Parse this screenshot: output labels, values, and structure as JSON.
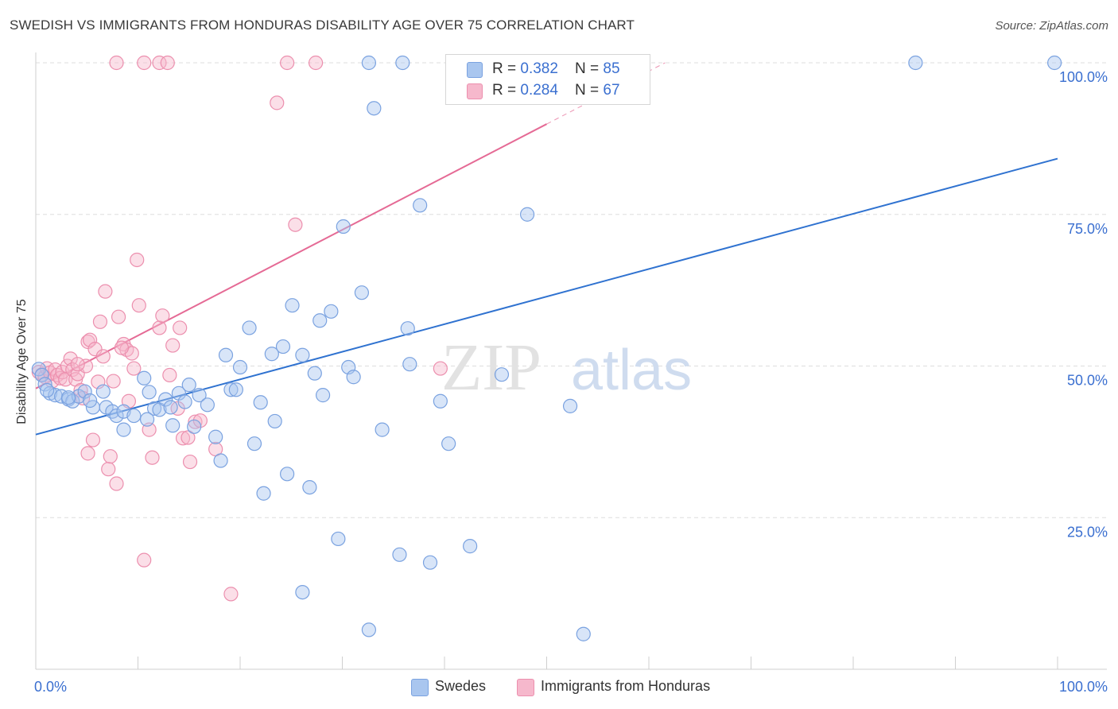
{
  "title": "SWEDISH VS IMMIGRANTS FROM HONDURAS DISABILITY AGE OVER 75 CORRELATION CHART",
  "source": "Source: ZipAtlas.com",
  "watermark": {
    "zip": "ZIP",
    "atlas": "atlas"
  },
  "colors": {
    "blue_fill": "#a9c6ef",
    "blue_stroke": "#7aa2e0",
    "blue_line": "#2f72d0",
    "pink_fill": "#f6b8cc",
    "pink_stroke": "#ec8fae",
    "pink_line": "#e56a95",
    "tick_label": "#3a6fd0",
    "grid": "#dedede"
  },
  "legend": {
    "rows": [
      {
        "r_label": "R = ",
        "r_value": "0.382",
        "n_label": "N = ",
        "n_value": "85"
      },
      {
        "r_label": "R = ",
        "r_value": "0.284",
        "n_label": "N = ",
        "n_value": "67"
      }
    ]
  },
  "bottom_legend": [
    "Swedes",
    "Immigrants from Honduras"
  ],
  "chart_data": {
    "type": "scatter",
    "title": "SWEDISH VS IMMIGRANTS FROM HONDURAS DISABILITY AGE OVER 75 CORRELATION CHART",
    "xlabel": "",
    "ylabel": "Disability Age Over 75",
    "xlim": [
      0,
      100
    ],
    "ylim": [
      0,
      100
    ],
    "x_tick_labels": [
      "0.0%",
      "100.0%"
    ],
    "y_tick_labels": [
      "25.0%",
      "50.0%",
      "75.0%",
      "100.0%"
    ],
    "y_ticks": [
      25,
      50,
      75,
      100
    ],
    "grid": true,
    "legend_position": "top-center",
    "series": [
      {
        "name": "Swedes",
        "r": 0.382,
        "n": 85,
        "trend": {
          "x": [
            0,
            100
          ],
          "y": [
            38.7,
            84.2
          ],
          "dashed_from": null
        },
        "points": [
          [
            0.3,
            49.5
          ],
          [
            0.6,
            48.5
          ],
          [
            0.9,
            47
          ],
          [
            1.4,
            45.5
          ],
          [
            1.9,
            45.2
          ],
          [
            2.5,
            45
          ],
          [
            3.2,
            44.5
          ],
          [
            3.6,
            44.2
          ],
          [
            4.2,
            45
          ],
          [
            4.8,
            45.8
          ],
          [
            5.6,
            43.2
          ],
          [
            6.6,
            45.8
          ],
          [
            6.9,
            43.2
          ],
          [
            7.5,
            42.5
          ],
          [
            7.9,
            41.8
          ],
          [
            8.6,
            42.5
          ],
          [
            8.6,
            39.5
          ],
          [
            9.6,
            41.8
          ],
          [
            10.6,
            48
          ],
          [
            11.1,
            45.7
          ],
          [
            11.6,
            43
          ],
          [
            12.1,
            42.8
          ],
          [
            12.7,
            44.5
          ],
          [
            13.2,
            43.2
          ],
          [
            13.4,
            40.2
          ],
          [
            14,
            45.5
          ],
          [
            14.6,
            44.1
          ],
          [
            15,
            46.9
          ],
          [
            15.5,
            40
          ],
          [
            16,
            45.2
          ],
          [
            16.8,
            43.6
          ],
          [
            17.6,
            38.3
          ],
          [
            18.1,
            34.4
          ],
          [
            18.6,
            51.8
          ],
          [
            19.1,
            46.1
          ],
          [
            19.6,
            46.1
          ],
          [
            20,
            49.8
          ],
          [
            20.9,
            56.3
          ],
          [
            21.4,
            37.2
          ],
          [
            22,
            44
          ],
          [
            22.3,
            29
          ],
          [
            23.1,
            52
          ],
          [
            23.4,
            40.9
          ],
          [
            24.2,
            53.2
          ],
          [
            24.6,
            32.2
          ],
          [
            25.1,
            60
          ],
          [
            26.1,
            51.8
          ],
          [
            26.8,
            30
          ],
          [
            27.3,
            48.8
          ],
          [
            27.8,
            57.5
          ],
          [
            28.1,
            45.2
          ],
          [
            28.9,
            59
          ],
          [
            29.6,
            21.5
          ],
          [
            30.1,
            73
          ],
          [
            30.6,
            49.8
          ],
          [
            31.1,
            48.2
          ],
          [
            31.9,
            62.1
          ],
          [
            32.6,
            6.5
          ],
          [
            32.6,
            100
          ],
          [
            33.1,
            92.5
          ],
          [
            33.9,
            39.5
          ],
          [
            35.6,
            18.9
          ],
          [
            35.9,
            100
          ],
          [
            36.4,
            56.2
          ],
          [
            36.6,
            50.3
          ],
          [
            37.6,
            76.5
          ],
          [
            38.6,
            17.6
          ],
          [
            39.6,
            44.2
          ],
          [
            40.4,
            37.2
          ],
          [
            41.9,
            100
          ],
          [
            42.5,
            20.3
          ],
          [
            44.6,
            100
          ],
          [
            45.6,
            48.6
          ],
          [
            46.9,
            100
          ],
          [
            48.1,
            75
          ],
          [
            52.3,
            43.4
          ],
          [
            53.6,
            5.8
          ],
          [
            58.1,
            100
          ],
          [
            86.1,
            100
          ],
          [
            99.7,
            100
          ],
          [
            1.1,
            46
          ],
          [
            3.2,
            44.8
          ],
          [
            5.3,
            44.3
          ],
          [
            10.9,
            41.2
          ],
          [
            26.1,
            12.7
          ]
        ]
      },
      {
        "name": "Immigrants from Honduras",
        "r": 0.284,
        "n": 67,
        "trend": {
          "x": [
            0,
            100
          ],
          "y": [
            46.3,
            133.5
          ],
          "dashed_from": 50
        },
        "points": [
          [
            0.3,
            49
          ],
          [
            0.6,
            48.6
          ],
          [
            0.9,
            48.2
          ],
          [
            1.1,
            49.6
          ],
          [
            1.4,
            48.9
          ],
          [
            1.6,
            47.5
          ],
          [
            1.9,
            49.4
          ],
          [
            2.1,
            48.5
          ],
          [
            2.4,
            48
          ],
          [
            2.6,
            49
          ],
          [
            2.9,
            47.8
          ],
          [
            3.1,
            50
          ],
          [
            3.4,
            51.2
          ],
          [
            3.6,
            49.4
          ],
          [
            3.9,
            47.8
          ],
          [
            4.1,
            48.7
          ],
          [
            4.4,
            46
          ],
          [
            4.6,
            44.7
          ],
          [
            4.9,
            50
          ],
          [
            5.1,
            54
          ],
          [
            5.3,
            54.3
          ],
          [
            5.6,
            37.8
          ],
          [
            5.8,
            52.8
          ],
          [
            6.1,
            47.4
          ],
          [
            6.3,
            57.3
          ],
          [
            6.6,
            51.6
          ],
          [
            6.8,
            62.3
          ],
          [
            7.1,
            33
          ],
          [
            7.3,
            35.1
          ],
          [
            7.6,
            47.5
          ],
          [
            7.9,
            30.6
          ],
          [
            8.1,
            58.1
          ],
          [
            8.6,
            53.6
          ],
          [
            8.9,
            52.7
          ],
          [
            9.1,
            44.2
          ],
          [
            9.6,
            49.6
          ],
          [
            9.9,
            67.5
          ],
          [
            10.1,
            60
          ],
          [
            10.6,
            18
          ],
          [
            11.1,
            39.5
          ],
          [
            11.4,
            34.9
          ],
          [
            12.1,
            56.3
          ],
          [
            12.4,
            58.3
          ],
          [
            13.1,
            48.5
          ],
          [
            13.4,
            53.4
          ],
          [
            14.1,
            56.3
          ],
          [
            14.4,
            38.1
          ],
          [
            14.9,
            38.2
          ],
          [
            15.1,
            34.2
          ],
          [
            15.6,
            40.8
          ],
          [
            16.1,
            41
          ],
          [
            17.6,
            36.3
          ],
          [
            19.1,
            12.4
          ],
          [
            23.6,
            93.4
          ],
          [
            24.6,
            100
          ],
          [
            25.4,
            73.3
          ],
          [
            27.4,
            100
          ],
          [
            10.6,
            100
          ],
          [
            12.1,
            100
          ],
          [
            12.9,
            100
          ],
          [
            7.9,
            100
          ],
          [
            39.6,
            49.6
          ],
          [
            13.9,
            43
          ],
          [
            9.4,
            52.1
          ],
          [
            5.1,
            35.6
          ],
          [
            8.4,
            53
          ],
          [
            4.1,
            50.3
          ]
        ]
      }
    ]
  }
}
